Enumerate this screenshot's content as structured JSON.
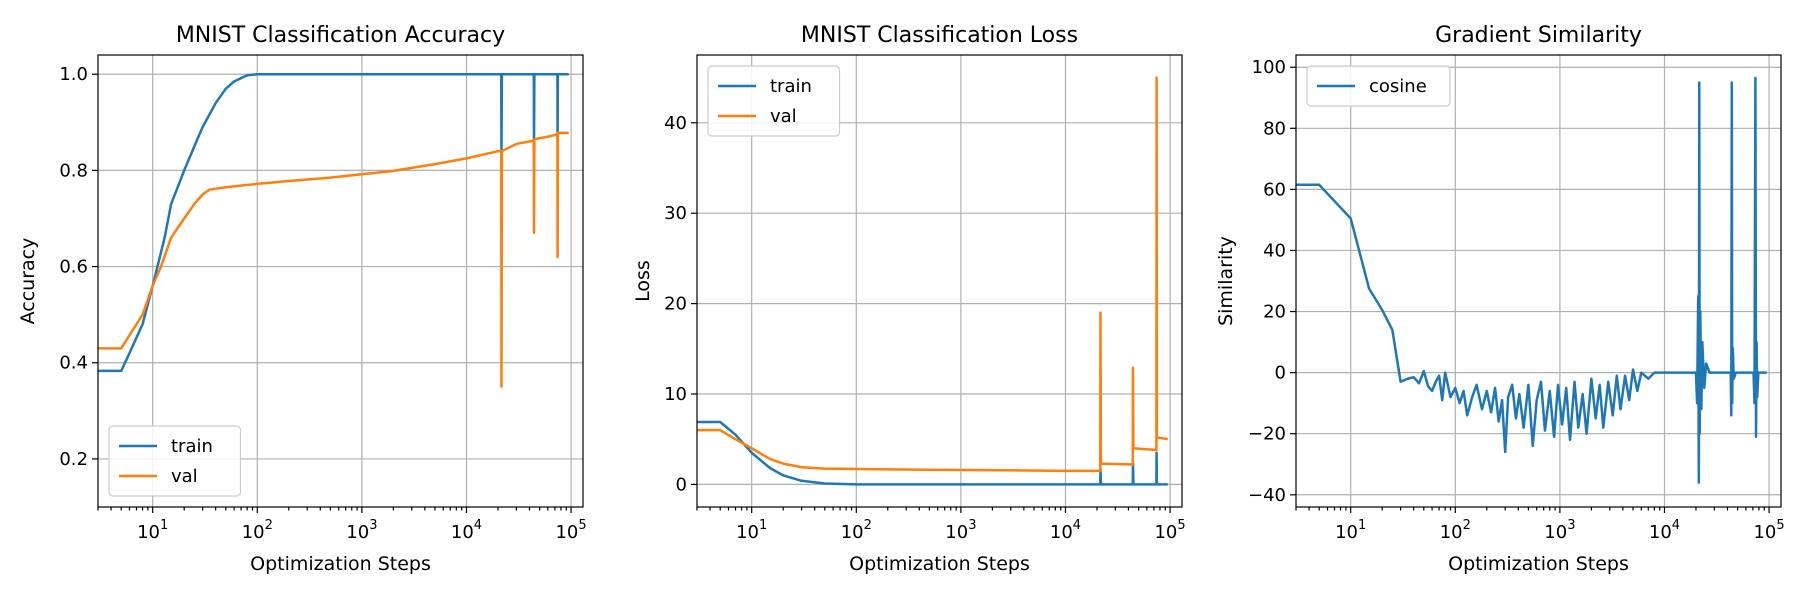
{
  "chart_data": [
    {
      "type": "line",
      "title": "MNIST Classification Accuracy",
      "xlabel": "Optimization Steps",
      "ylabel": "Accuracy",
      "xscale": "log",
      "xlim": [
        3,
        130000
      ],
      "ylim": [
        0.1,
        1.04
      ],
      "xticks": [
        10,
        100,
        1000,
        10000,
        100000
      ],
      "yticks": [
        0.2,
        0.4,
        0.6,
        0.8,
        1.0
      ],
      "ytick_labels": [
        "0.2",
        "0.4",
        "0.6",
        "0.8",
        "1.0"
      ],
      "grid": true,
      "legend_loc": "lower left",
      "series": [
        {
          "name": "train",
          "color": "#1f77b4",
          "points": [
            [
              3,
              0.383
            ],
            [
              5,
              0.383
            ],
            [
              6,
              0.42
            ],
            [
              8,
              0.48
            ],
            [
              10,
              0.56
            ],
            [
              13,
              0.66
            ],
            [
              15,
              0.73
            ],
            [
              20,
              0.8
            ],
            [
              25,
              0.85
            ],
            [
              30,
              0.89
            ],
            [
              40,
              0.94
            ],
            [
              50,
              0.97
            ],
            [
              60,
              0.985
            ],
            [
              80,
              0.998
            ],
            [
              100,
              1.0
            ],
            [
              1000,
              1.0
            ],
            [
              10000,
              1.0
            ],
            [
              21500,
              1.0
            ],
            [
              21600,
              0.83
            ],
            [
              21800,
              1.0
            ],
            [
              44000,
              1.0
            ],
            [
              44200,
              0.85
            ],
            [
              44600,
              1.0
            ],
            [
              74000,
              1.0
            ],
            [
              74300,
              0.87
            ],
            [
              74800,
              1.0
            ],
            [
              95000,
              1.0
            ]
          ]
        },
        {
          "name": "val",
          "color": "#ff7f0e",
          "points": [
            [
              3,
              0.43
            ],
            [
              5,
              0.43
            ],
            [
              8,
              0.5
            ],
            [
              10,
              0.56
            ],
            [
              12,
              0.6
            ],
            [
              15,
              0.66
            ],
            [
              20,
              0.7
            ],
            [
              25,
              0.73
            ],
            [
              30,
              0.75
            ],
            [
              35,
              0.76
            ],
            [
              50,
              0.765
            ],
            [
              100,
              0.772
            ],
            [
              200,
              0.778
            ],
            [
              500,
              0.785
            ],
            [
              1000,
              0.792
            ],
            [
              2000,
              0.799
            ],
            [
              5000,
              0.813
            ],
            [
              10000,
              0.825
            ],
            [
              20000,
              0.84
            ],
            [
              21500,
              0.84
            ],
            [
              21600,
              0.35
            ],
            [
              21800,
              0.84
            ],
            [
              30000,
              0.855
            ],
            [
              44000,
              0.862
            ],
            [
              44200,
              0.67
            ],
            [
              44600,
              0.865
            ],
            [
              60000,
              0.87
            ],
            [
              74000,
              0.875
            ],
            [
              74300,
              0.62
            ],
            [
              74800,
              0.878
            ],
            [
              95000,
              0.878
            ]
          ]
        }
      ]
    },
    {
      "type": "line",
      "title": "MNIST Classification Loss",
      "xlabel": "Optimization Steps",
      "ylabel": "Loss",
      "xscale": "log",
      "xlim": [
        3,
        130000
      ],
      "ylim": [
        -2.5,
        47.5
      ],
      "xticks": [
        10,
        100,
        1000,
        10000,
        100000
      ],
      "yticks": [
        0,
        10,
        20,
        30,
        40
      ],
      "ytick_labels": [
        "0",
        "10",
        "20",
        "30",
        "40"
      ],
      "grid": true,
      "legend_loc": "upper left",
      "series": [
        {
          "name": "train",
          "color": "#1f77b4",
          "points": [
            [
              3,
              6.9
            ],
            [
              5,
              6.9
            ],
            [
              7,
              5.5
            ],
            [
              10,
              3.5
            ],
            [
              15,
              1.8
            ],
            [
              20,
              1.0
            ],
            [
              30,
              0.4
            ],
            [
              50,
              0.1
            ],
            [
              100,
              0.0
            ],
            [
              1000,
              0.0
            ],
            [
              10000,
              0.0
            ],
            [
              21500,
              0.0
            ],
            [
              21600,
              1.8
            ],
            [
              21800,
              0.0
            ],
            [
              44000,
              0.0
            ],
            [
              44200,
              2.5
            ],
            [
              44600,
              0.0
            ],
            [
              74000,
              0.0
            ],
            [
              74300,
              3.5
            ],
            [
              74800,
              0.0
            ],
            [
              95000,
              0.0
            ]
          ]
        },
        {
          "name": "val",
          "color": "#ff7f0e",
          "points": [
            [
              3,
              6.0
            ],
            [
              5,
              6.0
            ],
            [
              7,
              5.0
            ],
            [
              10,
              4.0
            ],
            [
              15,
              2.8
            ],
            [
              20,
              2.3
            ],
            [
              30,
              1.9
            ],
            [
              50,
              1.75
            ],
            [
              100,
              1.7
            ],
            [
              1000,
              1.6
            ],
            [
              10000,
              1.5
            ],
            [
              21500,
              1.5
            ],
            [
              21600,
              19.0
            ],
            [
              21800,
              2.3
            ],
            [
              44000,
              2.2
            ],
            [
              44200,
              12.9
            ],
            [
              44600,
              4.0
            ],
            [
              74000,
              3.8
            ],
            [
              74300,
              45.0
            ],
            [
              74800,
              5.2
            ],
            [
              95000,
              5.0
            ]
          ]
        }
      ]
    },
    {
      "type": "line",
      "title": "Gradient Similarity",
      "xlabel": "Optimization Steps",
      "ylabel": "Similarity",
      "xscale": "log",
      "xlim": [
        3,
        130000
      ],
      "ylim": [
        -44,
        104
      ],
      "xticks": [
        10,
        100,
        1000,
        10000,
        100000
      ],
      "yticks": [
        -40,
        -20,
        0,
        20,
        40,
        60,
        80,
        100
      ],
      "ytick_labels": [
        "−40",
        "−20",
        "0",
        "20",
        "40",
        "60",
        "80",
        "100"
      ],
      "grid": true,
      "legend_loc": "upper left",
      "series": [
        {
          "name": "cosine",
          "color": "#1f77b4",
          "points": [
            [
              3,
              61.5
            ],
            [
              5,
              61.5
            ],
            [
              10,
              50.5
            ],
            [
              15,
              27.5
            ],
            [
              20,
              20.5
            ],
            [
              25,
              14.0
            ],
            [
              30,
              -3.0
            ],
            [
              35,
              -2.0
            ],
            [
              40,
              -1.5
            ],
            [
              45,
              -3.5
            ],
            [
              50,
              0.5
            ],
            [
              55,
              -4.5
            ],
            [
              60,
              -6.0
            ],
            [
              65,
              -3.0
            ],
            [
              70,
              -1.0
            ],
            [
              75,
              -9.0
            ],
            [
              80,
              0.0
            ],
            [
              90,
              -8.0
            ],
            [
              100,
              -5.0
            ],
            [
              110,
              -10.0
            ],
            [
              120,
              -6.0
            ],
            [
              130,
              -14.0
            ],
            [
              145,
              -8.0
            ],
            [
              160,
              -4.0
            ],
            [
              180,
              -12.0
            ],
            [
              200,
              -6.0
            ],
            [
              220,
              -13.0
            ],
            [
              240,
              -5.0
            ],
            [
              260,
              -16.0
            ],
            [
              280,
              -9.0
            ],
            [
              300,
              -26.0
            ],
            [
              320,
              -8.0
            ],
            [
              350,
              -4.0
            ],
            [
              380,
              -15.0
            ],
            [
              410,
              -7.0
            ],
            [
              450,
              -18.0
            ],
            [
              500,
              -4.0
            ],
            [
              550,
              -24.0
            ],
            [
              600,
              -9.0
            ],
            [
              660,
              -3.0
            ],
            [
              720,
              -19.0
            ],
            [
              800,
              -6.0
            ],
            [
              880,
              -21.0
            ],
            [
              960,
              -4.0
            ],
            [
              1050,
              -17.0
            ],
            [
              1150,
              -5.0
            ],
            [
              1250,
              -22.0
            ],
            [
              1380,
              -3.0
            ],
            [
              1500,
              -18.0
            ],
            [
              1650,
              -7.0
            ],
            [
              1800,
              -20.0
            ],
            [
              2000,
              -2.0
            ],
            [
              2200,
              -15.0
            ],
            [
              2400,
              -4.0
            ],
            [
              2600,
              -18.0
            ],
            [
              2900,
              -3.0
            ],
            [
              3200,
              -14.0
            ],
            [
              3500,
              -1.0
            ],
            [
              3800,
              -12.0
            ],
            [
              4200,
              -1.0
            ],
            [
              4600,
              -9.0
            ],
            [
              5000,
              1.0
            ],
            [
              5500,
              -6.0
            ],
            [
              6000,
              0.0
            ],
            [
              7000,
              -2.0
            ],
            [
              8000,
              0.0
            ],
            [
              10000,
              0.0
            ],
            [
              15000,
              0.0
            ],
            [
              20000,
              0.0
            ],
            [
              20500,
              -10.0
            ],
            [
              21000,
              25.0
            ],
            [
              21300,
              -36.0
            ],
            [
              21500,
              95.0
            ],
            [
              21700,
              -20.0
            ],
            [
              22000,
              20.0
            ],
            [
              22500,
              -12.0
            ],
            [
              23000,
              10.0
            ],
            [
              24000,
              -5.0
            ],
            [
              25000,
              3.0
            ],
            [
              27000,
              0.0
            ],
            [
              43000,
              0.0
            ],
            [
              43500,
              -14.0
            ],
            [
              44000,
              95.0
            ],
            [
              44400,
              -10.0
            ],
            [
              45000,
              8.0
            ],
            [
              46000,
              -2.0
            ],
            [
              48000,
              0.0
            ],
            [
              71000,
              0.0
            ],
            [
              72500,
              -10.0
            ],
            [
              74000,
              96.5
            ],
            [
              75000,
              -21.0
            ],
            [
              76000,
              10.0
            ],
            [
              77000,
              -8.0
            ],
            [
              79000,
              0.0
            ],
            [
              95000,
              0.0
            ]
          ]
        }
      ]
    }
  ]
}
